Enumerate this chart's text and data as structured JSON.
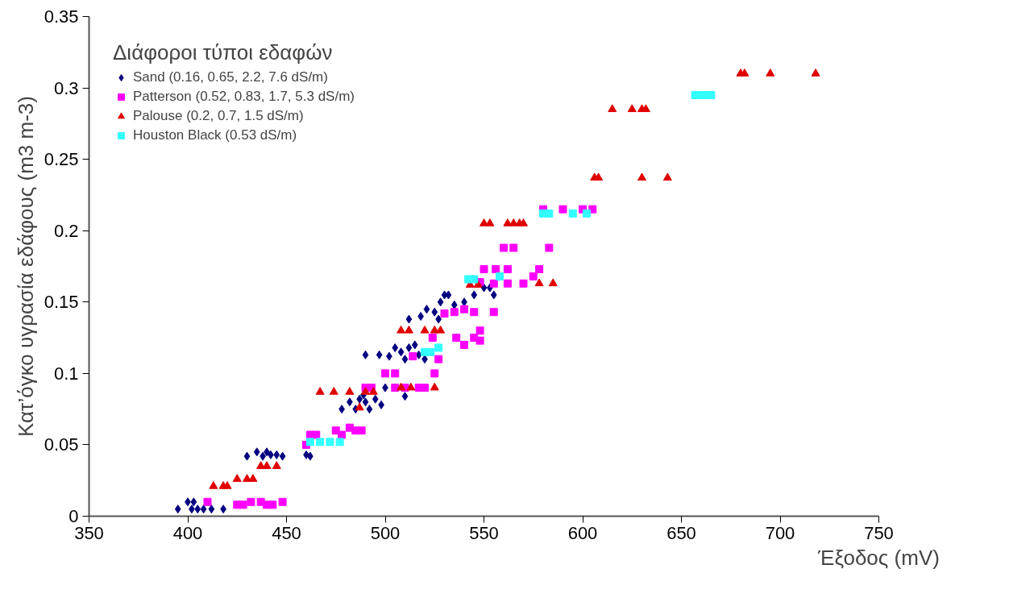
{
  "chart_data": {
    "type": "scatter",
    "xlabel": "Έξοδος (mV)",
    "ylabel": "Κατ’όγκο υγρασία εδάφους (m3 m-3)",
    "legend_title": "Διάφοροι τύποι εδαφών",
    "legend": "top left",
    "grid": false,
    "xlim": [
      350,
      750
    ],
    "xticks": [
      350,
      400,
      450,
      500,
      550,
      600,
      650,
      700,
      750
    ],
    "ylim": [
      0,
      0.35
    ],
    "yticks": [
      0,
      0.05,
      0.1,
      0.15,
      0.2,
      0.25,
      0.3,
      0.35
    ],
    "series": [
      {
        "name": "Sand (0.16, 0.65, 2.2, 7.6 dS/m)",
        "color": "#000080",
        "marker": "diamond",
        "x": [
          395,
          400,
          403,
          405,
          408,
          412,
          418,
          402,
          430,
          435,
          438,
          440,
          442,
          445,
          448,
          460,
          462,
          478,
          482,
          485,
          487,
          490,
          492,
          495,
          498,
          489,
          500,
          490,
          497,
          502,
          505,
          508,
          510,
          512,
          515,
          517,
          510,
          520,
          512,
          518,
          521,
          525,
          528,
          530,
          532,
          535,
          540,
          545,
          550,
          553,
          555,
          527
        ],
        "values": [
          0.005,
          0.01,
          0.01,
          0.005,
          0.005,
          0.005,
          0.005,
          0.005,
          0.042,
          0.045,
          0.042,
          0.045,
          0.043,
          0.043,
          0.042,
          0.043,
          0.042,
          0.075,
          0.08,
          0.075,
          0.082,
          0.08,
          0.075,
          0.082,
          0.078,
          0.085,
          0.09,
          0.113,
          0.113,
          0.112,
          0.118,
          0.115,
          0.11,
          0.118,
          0.12,
          0.113,
          0.084,
          0.11,
          0.138,
          0.14,
          0.145,
          0.143,
          0.15,
          0.155,
          0.155,
          0.148,
          0.15,
          0.155,
          0.16,
          0.16,
          0.155,
          0.138
        ]
      },
      {
        "name": "Patterson (0.52, 0.83, 1.7, 5.3 dS/m)",
        "color": "#ff00ff",
        "marker": "square",
        "x": [
          410,
          425,
          428,
          432,
          437,
          440,
          443,
          448,
          460,
          462,
          465,
          475,
          478,
          482,
          485,
          488,
          490,
          493,
          500,
          505,
          505,
          510,
          517,
          520,
          525,
          527,
          514,
          524,
          536,
          540,
          545,
          548,
          548,
          530,
          535,
          545,
          555,
          540,
          550,
          556,
          562,
          548,
          555,
          562,
          570,
          575,
          578,
          583,
          560,
          565,
          580,
          590,
          600,
          605
        ],
        "values": [
          0.01,
          0.008,
          0.008,
          0.01,
          0.01,
          0.008,
          0.008,
          0.01,
          0.05,
          0.057,
          0.057,
          0.06,
          0.057,
          0.062,
          0.06,
          0.06,
          0.09,
          0.09,
          0.1,
          0.1,
          0.09,
          0.09,
          0.09,
          0.09,
          0.1,
          0.11,
          0.112,
          0.125,
          0.125,
          0.12,
          0.125,
          0.13,
          0.123,
          0.142,
          0.143,
          0.143,
          0.143,
          0.145,
          0.173,
          0.173,
          0.173,
          0.164,
          0.163,
          0.163,
          0.163,
          0.168,
          0.173,
          0.188,
          0.188,
          0.188,
          0.215,
          0.215,
          0.215,
          0.215
        ]
      },
      {
        "name": "Palouse (0.2, 0.7, 1.5 dS/m)",
        "color": "#e00000",
        "marker": "triangle",
        "x": [
          413,
          418,
          420,
          425,
          430,
          433,
          437,
          440,
          445,
          467,
          474,
          482,
          487,
          490,
          494,
          508,
          512,
          520,
          525,
          528,
          508,
          513,
          525,
          543,
          547,
          550,
          553,
          562,
          565,
          568,
          570,
          578,
          585,
          606,
          608,
          630,
          643,
          615,
          625,
          630,
          632,
          680,
          682,
          695,
          718
        ],
        "values": [
          0.021,
          0.021,
          0.021,
          0.026,
          0.026,
          0.026,
          0.035,
          0.035,
          0.035,
          0.087,
          0.087,
          0.087,
          0.076,
          0.087,
          0.087,
          0.13,
          0.13,
          0.13,
          0.13,
          0.13,
          0.09,
          0.09,
          0.09,
          0.162,
          0.162,
          0.205,
          0.205,
          0.205,
          0.205,
          0.205,
          0.205,
          0.163,
          0.163,
          0.237,
          0.237,
          0.237,
          0.237,
          0.285,
          0.285,
          0.285,
          0.285,
          0.31,
          0.31,
          0.31,
          0.31
        ]
      },
      {
        "name": "Houston Black (0.53 dS/m)",
        "color": "#33ffff",
        "marker": "square",
        "x": [
          462,
          467,
          472,
          477,
          520,
          523,
          527,
          542,
          545,
          558,
          580,
          583,
          595,
          602,
          657,
          660,
          663,
          665
        ],
        "values": [
          0.052,
          0.052,
          0.052,
          0.052,
          0.115,
          0.115,
          0.118,
          0.166,
          0.166,
          0.168,
          0.212,
          0.212,
          0.212,
          0.212,
          0.295,
          0.295,
          0.295,
          0.295
        ]
      }
    ]
  }
}
